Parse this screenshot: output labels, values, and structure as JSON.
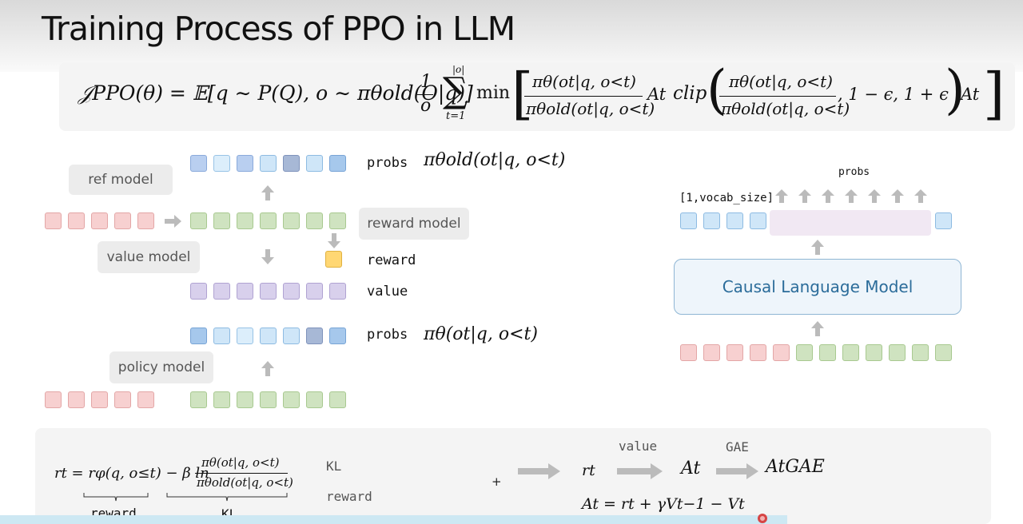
{
  "title": "Training Process of PPO in LLM",
  "formula_main": {
    "lhs": "𝒥PPO(θ) = 𝔼[q ∼ P(Q), o ∼ πθold(O|q)]",
    "frac_left": "1",
    "frac_left_den": "o",
    "sum_top": "|o|",
    "sum_bottom": "t=1",
    "min": "min",
    "ratio_num": "πθ(ot|q, o<t)",
    "ratio_den": "πθold(ot|q, o<t)",
    "adv": "At",
    "clip": "clip",
    "clip_tail": ", 1 − ϵ, 1 + ϵ",
    "adv2": "At"
  },
  "left_diagram": {
    "ref_model": "ref model",
    "value_model": "value model",
    "reward_model": "reward model",
    "policy_model": "policy model",
    "probs_label_top": "probs",
    "probs_formula_top": "πθold(ot|q, o<t)",
    "reward_label": "reward",
    "value_label": "value",
    "probs_label_bottom": "probs",
    "probs_formula_bottom": "πθ(ot|q, o<t)"
  },
  "right_diagram": {
    "probs_label": "probs",
    "vocab_label": "[1,vocab_size]",
    "model_label": "Causal Language Model"
  },
  "bottom": {
    "rt_formula_lhs": "rt = rφ(q, o≤t) − β ln",
    "rt_frac_num": "πθ(ot|q, o<t)",
    "rt_frac_den": "πθold(ot|q, o<t)",
    "brace_reward": "reward",
    "brace_kl": "KL",
    "kl_label": "KL",
    "reward_label": "reward",
    "plus": "+",
    "rt": "rt",
    "value_label": "value",
    "at": "At",
    "gae_label": "GAE",
    "at_gae": "AtGAE",
    "advantage_formula": "At = rt + γVt−1 − Vt"
  },
  "colors": {
    "red_token": "#f7d0d0",
    "green_token": "#cfe3c0",
    "purple_token": "#d8d0ec",
    "yellow_token": "#ffd773",
    "highlight_token": "#5bb7ea",
    "model_text": "#2b6c9a"
  }
}
